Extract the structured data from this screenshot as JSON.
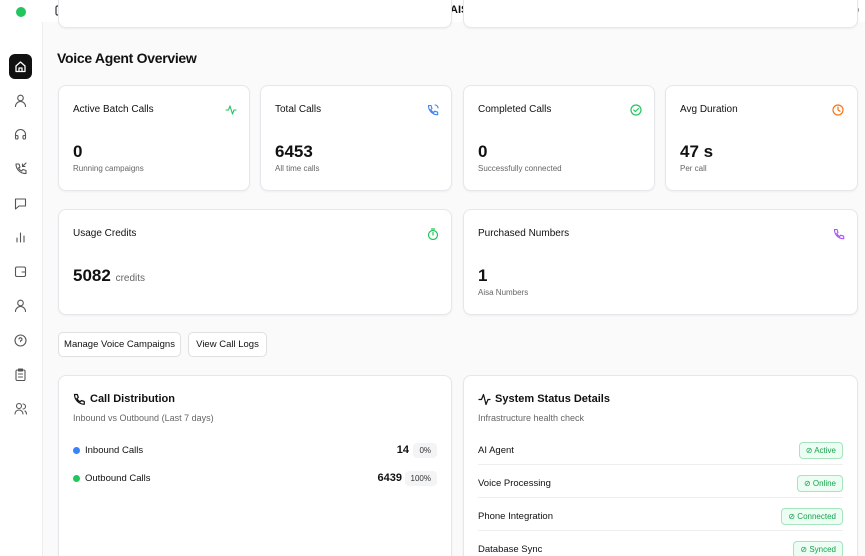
{
  "header": {
    "title": "AISA-X",
    "avatar": "A"
  },
  "page_title": "Voice Agent Overview",
  "stats": [
    {
      "label": "Active Batch Calls",
      "value": 0,
      "sub": "Running campaigns"
    },
    {
      "label": "Total Calls",
      "value": 6453,
      "sub": "All time calls"
    },
    {
      "label": "Completed Calls",
      "value": 0,
      "sub": "Successfully connected"
    },
    {
      "label": "Avg Duration",
      "value": "47 s",
      "sub": "Per call"
    }
  ],
  "usage": {
    "label": "Usage Credits",
    "value": 5082,
    "unit": "credits"
  },
  "purchased": {
    "label": "Purchased Numbers",
    "value": 1,
    "sub": "Aisa Numbers"
  },
  "buttons": [
    "Manage Voice Campaigns",
    "View Call Logs"
  ],
  "call_distribution": {
    "title": "Call Distribution",
    "subtitle": "Inbound vs Outbound (Last 7 days)",
    "rows": [
      {
        "name": "Inbound Calls",
        "count": 14,
        "percent": "0%"
      },
      {
        "name": "Outbound Calls",
        "count": 6439,
        "percent": "100%"
      }
    ]
  },
  "system_status": {
    "title": "System Status Details",
    "subtitle": "Infrastructure health check",
    "rows": [
      {
        "name": "AI Agent",
        "status": "Active"
      },
      {
        "name": "Voice Processing",
        "status": "Online"
      },
      {
        "name": "Phone Integration",
        "status": "Connected"
      },
      {
        "name": "Database Sync",
        "status": "Synced"
      }
    ]
  }
}
